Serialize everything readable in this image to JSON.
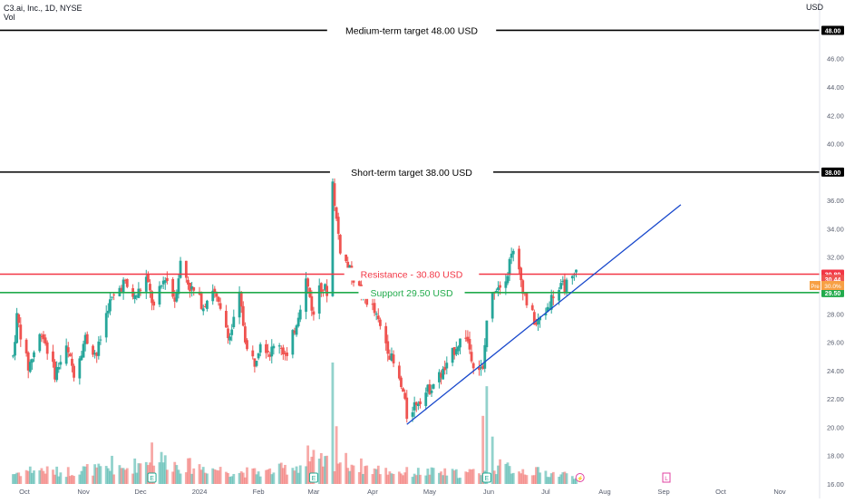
{
  "header": {
    "symbol": "C3.ai, Inc., 1D, NYSE",
    "volume_label": "Vol",
    "currency": "USD"
  },
  "chart_data": {
    "type": "candlestick",
    "title": "C3.ai, Inc., 1D, NYSE",
    "ylabel": "USD",
    "ylim": [
      16,
      49.5
    ],
    "y_ticks": [
      "16.00",
      "18.00",
      "20.00",
      "22.00",
      "24.00",
      "26.00",
      "28.00",
      "30.00",
      "32.00",
      "34.00",
      "36.00",
      "38.00",
      "40.00",
      "42.00",
      "44.00",
      "46.00",
      "48.00"
    ],
    "x_ticks": [
      "Oct",
      "Nov",
      "Dec",
      "2024",
      "Feb",
      "Mar",
      "Apr",
      "May",
      "Jun",
      "Jul",
      "Aug",
      "Sep",
      "Oct",
      "Nov"
    ],
    "up_color": "#26a69a",
    "down_color": "#ef5350",
    "price_anchors": [
      [
        "Sep 25",
        25.0
      ],
      [
        "Sep 27",
        27.8
      ],
      [
        "Oct 3",
        24.2
      ],
      [
        "Oct 10",
        26.8
      ],
      [
        "Oct 17",
        23.8
      ],
      [
        "Oct 23",
        25.5
      ],
      [
        "Oct 27",
        23.9
      ],
      [
        "Nov 2",
        26.3
      ],
      [
        "Nov 8",
        25.1
      ],
      [
        "Nov 14",
        28.6
      ],
      [
        "Nov 22",
        30.2
      ],
      [
        "Nov 28",
        29.1
      ],
      [
        "Dec 4",
        30.5
      ],
      [
        "Dec 8",
        28.4
      ],
      [
        "Dec 14",
        30.7
      ],
      [
        "Dec 19",
        29.0
      ],
      [
        "Dec 22",
        31.6
      ],
      [
        "Dec 27",
        29.9
      ],
      [
        "Jan 3",
        28.6
      ],
      [
        "Jan 8",
        29.8
      ],
      [
        "Jan 12",
        28.1
      ],
      [
        "Jan 17",
        26.4
      ],
      [
        "Jan 22",
        29.2
      ],
      [
        "Jan 26",
        25.4
      ],
      [
        "Jan 30",
        24.6
      ],
      [
        "Feb 2",
        26.2
      ],
      [
        "Feb 7",
        25.3
      ],
      [
        "Feb 12",
        26.0
      ],
      [
        "Feb 16",
        24.8
      ],
      [
        "Feb 21",
        27.5
      ],
      [
        "Feb 26",
        30.4
      ],
      [
        "Feb 28",
        29.2
      ],
      [
        "Mar 1",
        27.8
      ],
      [
        "Mar 4",
        30.1
      ],
      [
        "Mar 8",
        29.6
      ],
      [
        "Mar 11",
        37.3
      ],
      [
        "Mar 13",
        34.6
      ],
      [
        "Mar 15",
        32.6
      ],
      [
        "Mar 20",
        31.0
      ],
      [
        "Mar 26",
        29.5
      ],
      [
        "Apr 1",
        28.4
      ],
      [
        "Apr 8",
        26.0
      ],
      [
        "Apr 12",
        24.4
      ],
      [
        "Apr 17",
        22.4
      ],
      [
        "Apr 19",
        20.8
      ],
      [
        "Apr 24",
        21.8
      ],
      [
        "Apr 30",
        22.6
      ],
      [
        "May 6",
        23.6
      ],
      [
        "May 10",
        24.2
      ],
      [
        "May 15",
        25.8
      ],
      [
        "May 20",
        26.5
      ],
      [
        "May 24",
        24.6
      ],
      [
        "May 29",
        23.9
      ],
      [
        "May 31",
        27.6
      ],
      [
        "Jun 4",
        29.8
      ],
      [
        "Jun 7",
        30.2
      ],
      [
        "Jun 11",
        30.9
      ],
      [
        "Jun 13",
        32.6
      ],
      [
        "Jun 17",
        30.9
      ],
      [
        "Jun 21",
        28.8
      ],
      [
        "Jun 26",
        27.2
      ],
      [
        "Jul 1",
        28.2
      ],
      [
        "Jul 5",
        29.4
      ],
      [
        "Jul 10",
        29.9
      ],
      [
        "Jul 15",
        30.3
      ],
      [
        "Jul 17",
        30.9
      ]
    ],
    "volume_anchors": [
      [
        "Sep 25",
        0.7
      ],
      [
        "Oct 6",
        1.0
      ],
      [
        "Oct 20",
        0.8
      ],
      [
        "Nov 3",
        1.0
      ],
      [
        "Nov 20",
        0.9
      ],
      [
        "Dec 1",
        1.4
      ],
      [
        "Dec 7",
        1.9
      ],
      [
        "Dec 20",
        1.3
      ],
      [
        "Jan 5",
        1.1
      ],
      [
        "Jan 20",
        0.8
      ],
      [
        "Feb 5",
        0.8
      ],
      [
        "Feb 21",
        1.2
      ],
      [
        "Mar 1",
        1.4
      ],
      [
        "Mar 15",
        1.6
      ],
      [
        "Apr 1",
        1.0
      ],
      [
        "Apr 15",
        0.8
      ],
      [
        "May 1",
        0.8
      ],
      [
        "May 20",
        0.7
      ],
      [
        "Jun 5",
        1.2
      ],
      [
        "Jun 20",
        0.9
      ],
      [
        "Jul 5",
        0.7
      ],
      [
        "Jul 17",
        0.6
      ]
    ],
    "volume_spikes": [
      {
        "date": "Nov 16",
        "volume": 1.9
      },
      {
        "date": "Dec 7",
        "volume": 2.8
      },
      {
        "date": "Jan 13",
        "volume": 1.9
      },
      {
        "date": "Feb 27",
        "volume": 2.6
      },
      {
        "date": "Mar 1",
        "volume": 2.3
      },
      {
        "date": "Mar 11",
        "volume": 8.2
      },
      {
        "date": "Mar 13",
        "volume": 3.9
      },
      {
        "date": "May 29",
        "volume": 4.6
      },
      {
        "date": "May 31",
        "volume": 6.6
      },
      {
        "date": "Jun 3",
        "volume": 3.2
      }
    ],
    "earnings_markers": [
      {
        "date": "Dec 7",
        "label": "E"
      },
      {
        "date": "Mar 1",
        "label": "E"
      },
      {
        "date": "May 31",
        "label": "E"
      }
    ],
    "dividend_marker": {
      "date": "Jul 19",
      "label": "⚡"
    },
    "future_marker": {
      "date": "Sep 4",
      "label": "L"
    },
    "levels": [
      {
        "price": 48.0,
        "label": "Medium-term target 48.00 USD",
        "color": "#000000",
        "axis_label": "48.00",
        "axis_bg": "#000000"
      },
      {
        "price": 38.0,
        "label": "Short-term target 38.00 USD",
        "color": "#000000",
        "axis_label": "38.00",
        "axis_bg": "#000000"
      },
      {
        "price": 30.8,
        "label": "Resistance - 30.80 USD",
        "color": "#f23645",
        "axis_label": "30.80",
        "axis_bg": "#f23645"
      },
      {
        "price": 29.5,
        "label": "Support 29.50 USD",
        "color": "#22ab4c",
        "axis_label": "29.50",
        "axis_bg": "#22ab4c"
      }
    ],
    "last_price": {
      "price": 30.44,
      "label": "30.44"
    },
    "premarket": {
      "price": 30.0,
      "tag": "Pre",
      "label": "30.0%"
    },
    "trendline": {
      "start": [
        "Apr 19",
        20.2
      ],
      "end": [
        "Sep 10",
        35.7
      ],
      "color": "#1848cc"
    },
    "grid": false
  }
}
